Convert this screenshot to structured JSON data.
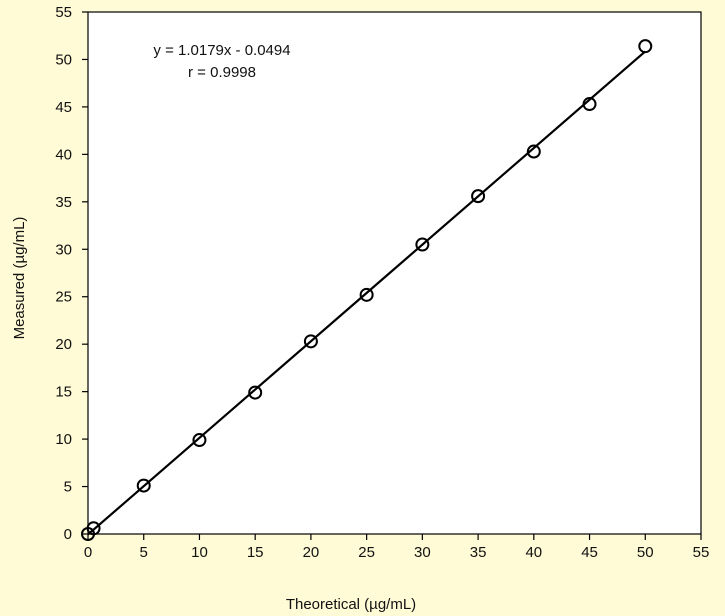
{
  "chart_data": {
    "type": "scatter",
    "xlabel": "Theoretical (µg/mL)",
    "ylabel": "Measured (µg/mL)",
    "xlim": [
      0,
      55
    ],
    "ylim": [
      0,
      55
    ],
    "xticks": [
      0,
      5,
      10,
      15,
      20,
      25,
      30,
      35,
      40,
      45,
      50,
      55
    ],
    "yticks": [
      0,
      5,
      10,
      15,
      20,
      25,
      30,
      35,
      40,
      45,
      50,
      55
    ],
    "grid": false,
    "points": [
      {
        "x": 0,
        "y": 0
      },
      {
        "x": 0.5,
        "y": 0.6
      },
      {
        "x": 5,
        "y": 5.1
      },
      {
        "x": 10,
        "y": 9.9
      },
      {
        "x": 15,
        "y": 14.9
      },
      {
        "x": 20,
        "y": 20.3
      },
      {
        "x": 25,
        "y": 25.2
      },
      {
        "x": 30,
        "y": 30.5
      },
      {
        "x": 35,
        "y": 35.6
      },
      {
        "x": 40,
        "y": 40.3
      },
      {
        "x": 45,
        "y": 45.3
      },
      {
        "x": 50,
        "y": 51.4
      }
    ],
    "trendline": {
      "slope": 1.0179,
      "intercept": -0.0494,
      "x_range": [
        0,
        50
      ]
    },
    "annotations": [
      "y = 1.0179x - 0.0494",
      "r = 0.9998"
    ],
    "colors": {
      "background": "#fffbd6",
      "plot_area": "#ffffff",
      "ink": "#000000"
    }
  }
}
